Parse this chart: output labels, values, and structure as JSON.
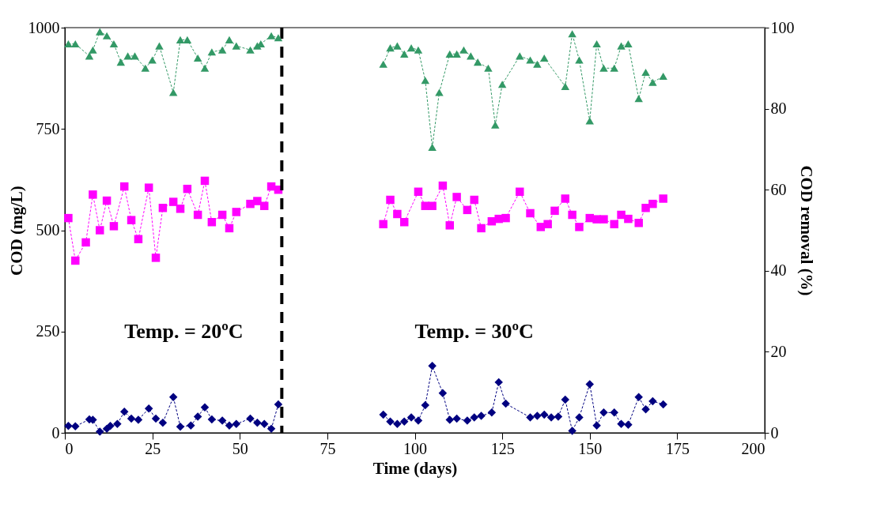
{
  "chart_data": {
    "type": "line",
    "xlabel": "Time (days)",
    "ylabel": "COD (mg/L)",
    "y2label": "COD removal (%)",
    "xlim": [
      0,
      200
    ],
    "xticks": [
      0,
      25,
      50,
      75,
      100,
      125,
      150,
      175,
      200
    ],
    "ylim": [
      0,
      1000
    ],
    "yticks": [
      0,
      250,
      500,
      750,
      1000
    ],
    "y2lim": [
      0,
      100
    ],
    "y2ticks": [
      0,
      20,
      40,
      60,
      80,
      100
    ],
    "grid": false,
    "line_style": "dashed",
    "ref_lines": [
      {
        "axis": "x",
        "value": 62,
        "color": "#000000",
        "line_style": "dashed"
      }
    ],
    "annotations": [
      "Temp. = 20ºC",
      "Temp. = 30ºC"
    ],
    "series": [
      {
        "color": "#ff00ff",
        "marker": "square",
        "x": [
          1,
          3,
          6,
          8,
          10,
          12,
          14,
          17,
          19,
          21,
          24,
          26,
          28,
          31,
          33,
          35,
          38,
          40,
          42,
          45,
          47,
          49,
          53,
          55,
          57,
          59,
          61,
          76,
          91,
          93,
          95,
          97,
          101,
          103,
          105,
          108,
          110,
          112,
          115,
          117,
          119,
          122,
          124,
          126,
          130,
          133,
          136,
          138,
          140,
          143,
          145,
          147,
          150,
          152,
          154,
          157,
          159,
          161,
          164,
          166,
          168,
          171
        ],
        "values": [
          530,
          425,
          470,
          588,
          500,
          573,
          510,
          608,
          525,
          478,
          605,
          432,
          555,
          570,
          553,
          602,
          538,
          622,
          520,
          538,
          505,
          545,
          565,
          572,
          560,
          608,
          600,
          null,
          515,
          575,
          540,
          520,
          595,
          560,
          560,
          610,
          512,
          582,
          550,
          575,
          505,
          522,
          528,
          530,
          595,
          542,
          508,
          515,
          548,
          578,
          538,
          508,
          530,
          527,
          527,
          515,
          538,
          528,
          518,
          555,
          565,
          578
        ]
      },
      {
        "color": "#000080",
        "marker": "diamond",
        "x": [
          1,
          3,
          7,
          8,
          10,
          12,
          13,
          15,
          17,
          19,
          21,
          24,
          26,
          28,
          31,
          33,
          36,
          38,
          40,
          42,
          45,
          47,
          49,
          53,
          55,
          57,
          59,
          61,
          76,
          91,
          93,
          95,
          97,
          99,
          101,
          103,
          105,
          108,
          110,
          112,
          115,
          117,
          119,
          122,
          124,
          126,
          133,
          135,
          137,
          139,
          141,
          143,
          145,
          147,
          150,
          152,
          154,
          157,
          159,
          161,
          164,
          166,
          168,
          171
        ],
        "values": [
          17,
          16,
          33,
          32,
          3,
          10,
          17,
          22,
          52,
          35,
          32,
          60,
          35,
          25,
          88,
          15,
          18,
          40,
          63,
          33,
          30,
          18,
          22,
          35,
          25,
          22,
          10,
          70,
          null,
          45,
          28,
          22,
          28,
          38,
          30,
          68,
          165,
          98,
          32,
          35,
          30,
          38,
          42,
          50,
          125,
          72,
          38,
          42,
          45,
          38,
          40,
          82,
          5,
          38,
          120,
          18,
          50,
          50,
          22,
          20,
          88,
          58,
          78,
          70
        ]
      },
      {
        "color": "#339966",
        "marker": "triangle",
        "axis": "y2",
        "x": [
          1,
          3,
          7,
          8,
          10,
          12,
          14,
          16,
          18,
          20,
          23,
          25,
          27,
          31,
          33,
          35,
          38,
          40,
          42,
          45,
          47,
          49,
          53,
          55,
          56,
          59,
          61,
          76,
          91,
          93,
          95,
          97,
          99,
          101,
          103,
          105,
          107,
          110,
          112,
          114,
          116,
          118,
          121,
          123,
          125,
          130,
          133,
          135,
          137,
          143,
          145,
          147,
          150,
          152,
          154,
          157,
          159,
          161,
          164,
          166,
          168,
          171
        ],
        "values": [
          96,
          96,
          93,
          94.5,
          99,
          98,
          96,
          91.5,
          93,
          93,
          90,
          92,
          95.5,
          84,
          97,
          97,
          92.5,
          90,
          94,
          94.5,
          97,
          95.5,
          94.5,
          95.5,
          96,
          98,
          97.5,
          null,
          91,
          95,
          95.5,
          93.5,
          95,
          94.5,
          87,
          70.5,
          84,
          93.5,
          93.5,
          94.5,
          93,
          91.5,
          90,
          76,
          86,
          93,
          92,
          91,
          92.5,
          85.5,
          98.5,
          92,
          77,
          96,
          90,
          90,
          95.5,
          96,
          82.5,
          89,
          86.5,
          88
        ]
      }
    ]
  }
}
